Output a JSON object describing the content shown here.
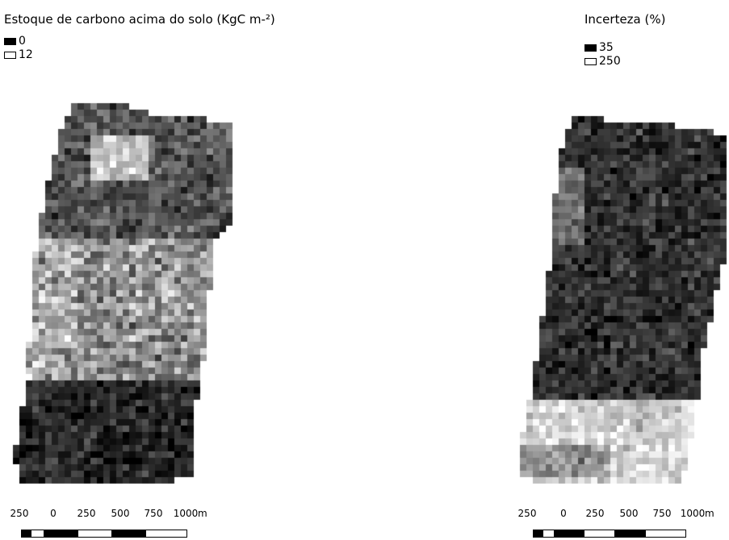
{
  "left_map": {
    "legend": {
      "title": "Estoque de carbono acima do solo (KgC m-²)",
      "min_label": "0",
      "max_label": "12",
      "min_color": "#000000",
      "max_color": "#ffffff"
    },
    "scale_bar": {
      "labels": [
        "250",
        "0",
        "250",
        "500",
        "750",
        "1000"
      ],
      "unit": "m"
    }
  },
  "right_map": {
    "legend": {
      "title": "Incerteza (%)",
      "min_label": "35",
      "max_label": "250",
      "min_color": "#000000",
      "max_color": "#ffffff"
    },
    "scale_bar": {
      "labels": [
        "250",
        "0",
        "250",
        "500",
        "750",
        "1000"
      ],
      "unit": "m"
    }
  }
}
